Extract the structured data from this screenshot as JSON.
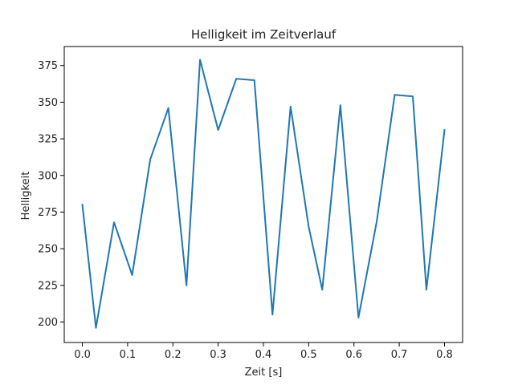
{
  "chart_data": {
    "type": "line",
    "title": "Helligkeit im Zeitverlauf",
    "xlabel": "Zeit [s]",
    "ylabel": "Helligkeit",
    "xlim": [
      -0.04,
      0.84
    ],
    "ylim": [
      186,
      388
    ],
    "x_ticks": [
      0.0,
      0.1,
      0.2,
      0.3,
      0.4,
      0.5,
      0.6,
      0.7,
      0.8
    ],
    "x_tick_labels": [
      "0.0",
      "0.1",
      "0.2",
      "0.3",
      "0.4",
      "0.5",
      "0.6",
      "0.7",
      "0.8"
    ],
    "y_ticks": [
      200,
      225,
      250,
      275,
      300,
      325,
      350,
      375
    ],
    "y_tick_labels": [
      "200",
      "225",
      "250",
      "275",
      "300",
      "325",
      "350",
      "375"
    ],
    "grid": false,
    "series": [
      {
        "color": "#1f77b4",
        "x": [
          0.0,
          0.03,
          0.07,
          0.11,
          0.15,
          0.19,
          0.23,
          0.26,
          0.3,
          0.34,
          0.38,
          0.42,
          0.46,
          0.5,
          0.53,
          0.57,
          0.61,
          0.65,
          0.69,
          0.73,
          0.76,
          0.8
        ],
        "y": [
          280,
          196,
          268,
          232,
          311,
          346,
          225,
          379,
          331,
          366,
          365,
          205,
          347,
          265,
          222,
          348,
          203,
          268,
          355,
          354,
          222,
          331
        ]
      }
    ]
  }
}
